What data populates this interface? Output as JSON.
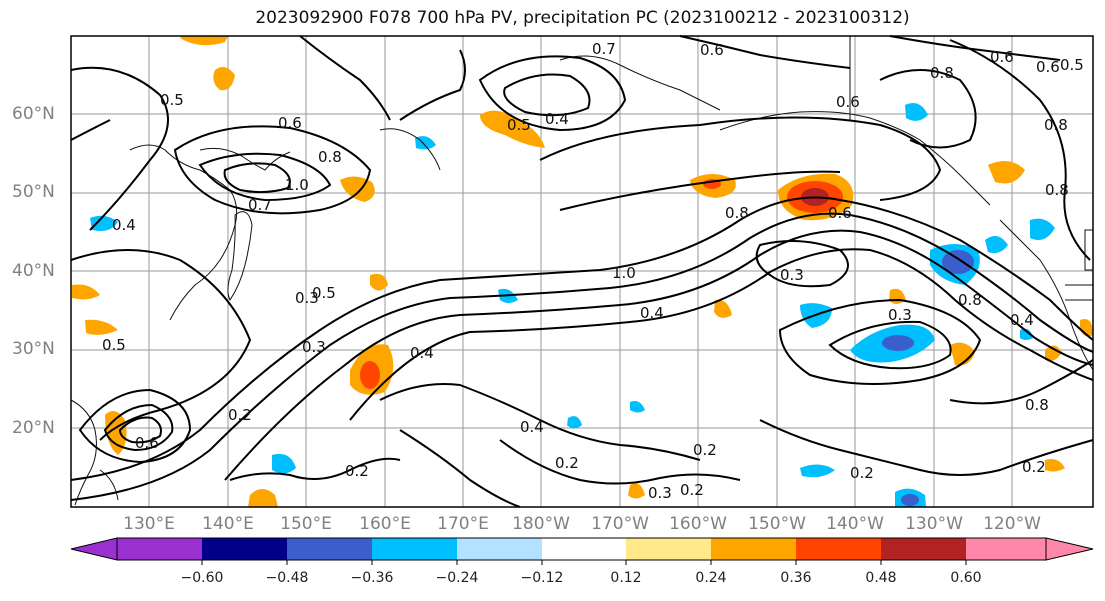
{
  "title": "2023092900 F078 700 hPa PV, precipitation PC (2023100212 - 2023100312)",
  "lat_labels": [
    "60°N",
    "50°N",
    "40°N",
    "30°N",
    "20°N"
  ],
  "lon_labels": [
    "130°E",
    "140°E",
    "150°E",
    "160°E",
    "170°E",
    "180°W",
    "170°W",
    "160°W",
    "150°W",
    "140°W",
    "130°W",
    "120°W"
  ],
  "contour_labels": [
    "0.7",
    "0.6",
    "0.8",
    "0.5",
    "0.5",
    "0.4",
    "0.6",
    "0.6",
    "0.8",
    "0.8",
    "1.0",
    "0.8",
    "0.7",
    "0.4",
    "0.8",
    "0.6",
    "1.0",
    "0.3",
    "0.4",
    "0.3",
    "0.5",
    "0.3",
    "0.3",
    "0.8",
    "0.4",
    "0.5",
    "0.4",
    "0.4",
    "0.6",
    "0.2",
    "0.2",
    "0.2",
    "0.3",
    "0.2",
    "0.2",
    "0.2",
    "0.2",
    "0.6",
    "0.5",
    "0.8",
    "0.6"
  ],
  "colorbar": {
    "ticks": [
      "−0.60",
      "−0.48",
      "−0.36",
      "−0.24",
      "−0.12",
      "0.12",
      "0.24",
      "0.36",
      "0.48",
      "0.60"
    ],
    "colors": [
      "#9b30d0",
      "#00008b",
      "#3a5fcd",
      "#00bfff",
      "#b2e2ff",
      "#ffffff",
      "#ffe98a",
      "#ffa500",
      "#ff4500",
      "#b22222",
      "#ff88aa"
    ]
  }
}
